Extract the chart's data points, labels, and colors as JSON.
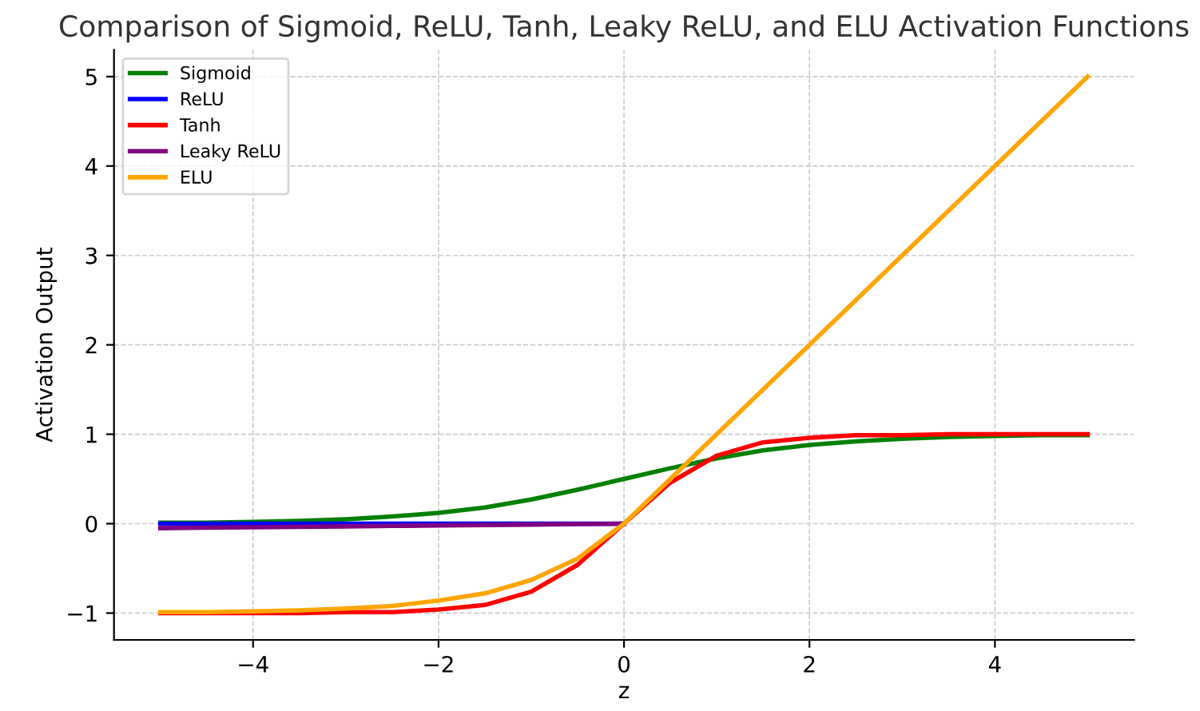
{
  "chart_data": {
    "type": "line",
    "title": "Comparison of Sigmoid, ReLU, Tanh, Leaky ReLU, and ELU Activation Functions",
    "xlabel": "z",
    "ylabel": "Activation Output",
    "x": [
      -5,
      -4.5,
      -4,
      -3.5,
      -3,
      -2.5,
      -2,
      -1.5,
      -1,
      -0.5,
      0,
      0.5,
      1,
      1.5,
      2,
      2.5,
      3,
      3.5,
      4,
      4.5,
      5
    ],
    "series": [
      {
        "name": "Sigmoid",
        "color": "#008000",
        "values": [
          0.01,
          0.01,
          0.02,
          0.03,
          0.05,
          0.08,
          0.12,
          0.18,
          0.27,
          0.38,
          0.5,
          0.62,
          0.73,
          0.82,
          0.88,
          0.92,
          0.95,
          0.97,
          0.98,
          0.99,
          0.99
        ]
      },
      {
        "name": "ReLU",
        "color": "#0000ff",
        "values": [
          0,
          0,
          0,
          0,
          0,
          0,
          0,
          0,
          0,
          0,
          0,
          null,
          null,
          null,
          null,
          null,
          null,
          null,
          null,
          null,
          null
        ]
      },
      {
        "name": "Tanh",
        "color": "#ff0000",
        "values": [
          -1,
          -1,
          -1,
          -1,
          -0.99,
          -0.99,
          -0.96,
          -0.91,
          -0.76,
          -0.46,
          0,
          0.46,
          0.76,
          0.91,
          0.96,
          0.99,
          0.99,
          1,
          1,
          1,
          1
        ]
      },
      {
        "name": "Leaky ReLU",
        "color": "#800080",
        "values": [
          -0.05,
          -0.045,
          -0.04,
          -0.035,
          -0.03,
          -0.025,
          -0.02,
          -0.015,
          -0.01,
          -0.005,
          0,
          null,
          null,
          null,
          null,
          null,
          null,
          null,
          null,
          null,
          null
        ]
      },
      {
        "name": "ELU",
        "color": "#ffa500",
        "values": [
          -0.99,
          -0.99,
          -0.98,
          -0.97,
          -0.95,
          -0.92,
          -0.86,
          -0.78,
          -0.63,
          -0.39,
          0,
          0.5,
          1,
          1.5,
          2,
          2.5,
          3,
          3.5,
          4,
          4.5,
          5
        ]
      }
    ],
    "xlim": [
      -5.5,
      5.5
    ],
    "ylim": [
      -1.3,
      5.3
    ],
    "xticks": [
      -4,
      -2,
      0,
      2,
      4
    ],
    "yticks": [
      -1,
      0,
      1,
      2,
      3,
      4,
      5
    ],
    "grid": true,
    "legend": "top left",
    "line_style": "solid",
    "marker": "none"
  }
}
